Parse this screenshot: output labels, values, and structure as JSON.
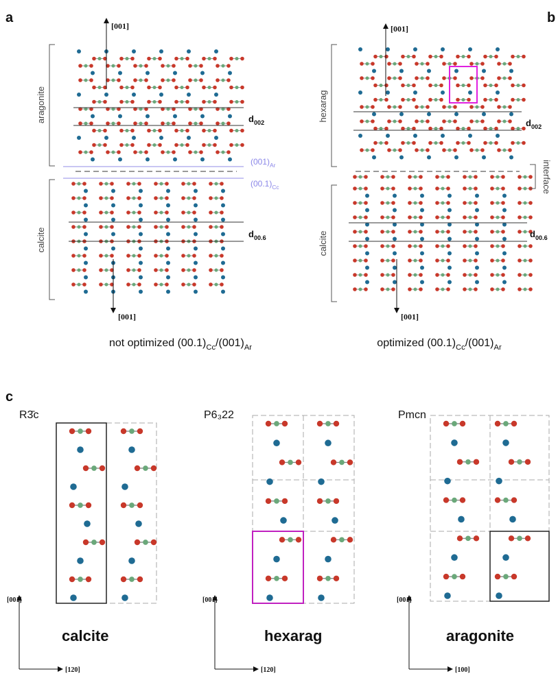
{
  "panel_a": {
    "label": "a",
    "axis_top": "[001]",
    "axis_bottom": "[001]",
    "upper_phase": "aragonite",
    "lower_phase": "calcite",
    "d_upper": {
      "base": "d",
      "sub": "002"
    },
    "d_lower": {
      "base": "d",
      "sub": "00.6"
    },
    "plane_upper": {
      "base": "(001)",
      "sub": "Ar"
    },
    "plane_lower": {
      "base": "(00.1)",
      "sub": "Cc"
    },
    "caption": {
      "prefix": "not optimized (00.1)",
      "s1": "Cc",
      "mid": "/(001)",
      "s2": "Ar"
    }
  },
  "panel_b": {
    "label": "b",
    "axis_top": "[001]",
    "axis_bottom": "[001]",
    "upper_phase": "hexarag",
    "lower_phase": "calcite",
    "interface": "interface",
    "d_upper": {
      "base": "d",
      "sub": "002"
    },
    "d_lower": {
      "base": "d",
      "sub": "00.6"
    },
    "caption": {
      "prefix": "optimized (00.1)",
      "s1": "Cc",
      "mid": "/(001)",
      "s2": "Ar"
    }
  },
  "panel_c": {
    "label": "c",
    "structures": [
      {
        "space_group": "R3̄c",
        "name": "calcite",
        "axis_v": "[001]",
        "axis_h": "[120]"
      },
      {
        "space_group": "P6₃22",
        "name": "hexarag",
        "axis_v": "[001]",
        "axis_h": "[120]"
      },
      {
        "space_group": "Pmcn",
        "name": "aragonite",
        "axis_v": "[001]",
        "axis_h": "[100]"
      }
    ]
  }
}
